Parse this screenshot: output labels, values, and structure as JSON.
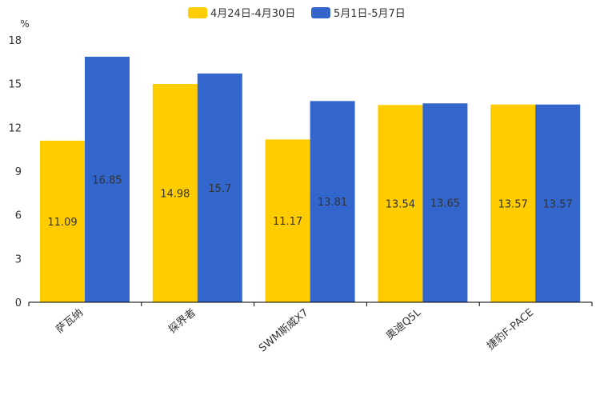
{
  "chart_data": {
    "type": "bar",
    "title": "",
    "xlabel": "",
    "ylabel": "%",
    "ylim": [
      0,
      18
    ],
    "yticks": [
      0,
      3,
      6,
      9,
      12,
      15,
      18
    ],
    "categories": [
      "萨瓦纳",
      "探界者",
      "SWM斯威X7",
      "奥迪Q5L",
      "捷豹F-PACE"
    ],
    "series": [
      {
        "name": "4月24日-4月30日",
        "color": "#FFCC00",
        "values": [
          11.09,
          14.98,
          11.17,
          13.54,
          13.57
        ]
      },
      {
        "name": "5月1日-5月7日",
        "color": "#3366CC",
        "values": [
          16.85,
          15.7,
          13.81,
          13.65,
          13.57
        ]
      }
    ],
    "legend_position": "top-center",
    "grid": false
  }
}
